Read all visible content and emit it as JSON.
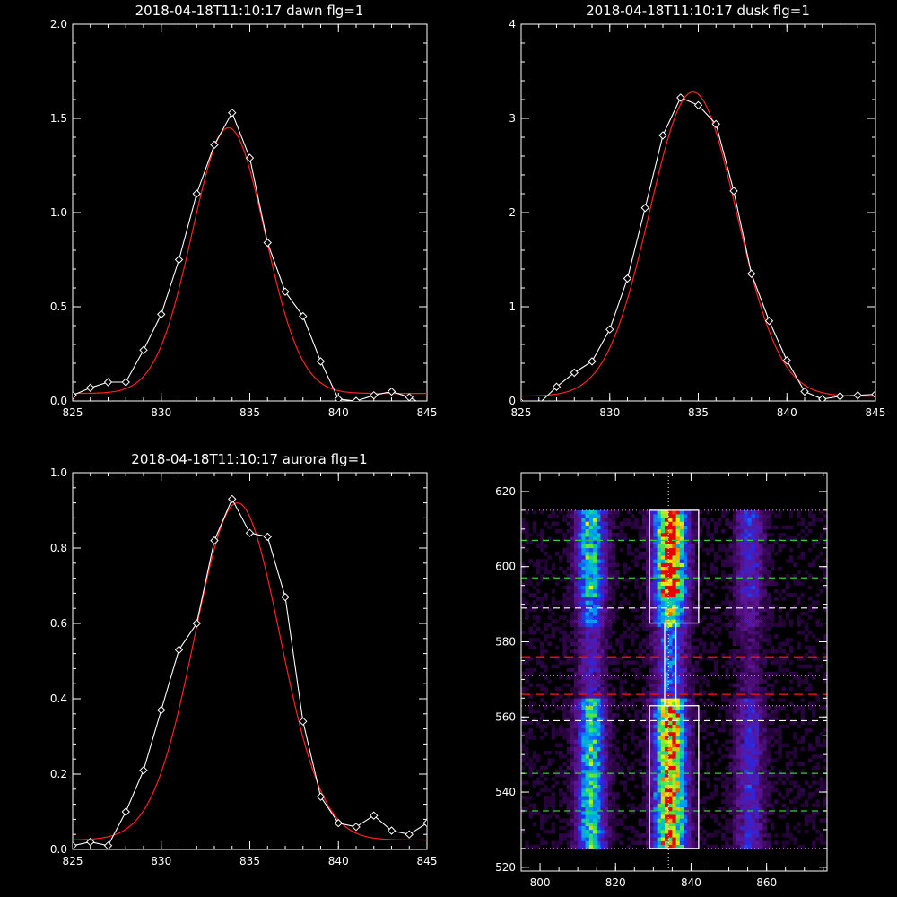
{
  "colors": {
    "background": "#000000",
    "axes": "#ffffff",
    "data_line": "#ffffff",
    "fit_line": "#ff2020",
    "guide_green": "#33cc33",
    "guide_white": "#ffffff",
    "guide_red": "#dd1111",
    "box_dotted": "#ff99ff"
  },
  "chart_data": [
    {
      "type": "line",
      "title": "2018-04-18T11:10:17 dawn flg=1",
      "xlim": [
        825,
        845
      ],
      "ylim": [
        0,
        2.0
      ],
      "xticks": [
        "825",
        "830",
        "835",
        "840",
        "845"
      ],
      "yticks": [
        "0.0",
        "0.5",
        "1.0",
        "1.5",
        "2.0"
      ],
      "series": [
        {
          "marker": "diamond",
          "x": [
            825,
            826,
            827,
            828,
            829,
            830,
            831,
            832,
            833,
            834,
            835,
            836,
            837,
            838,
            839,
            840,
            841,
            842,
            843,
            844,
            845
          ],
          "y": [
            0.03,
            0.07,
            0.1,
            0.1,
            0.27,
            0.46,
            0.75,
            1.1,
            1.36,
            1.53,
            1.29,
            0.84,
            0.58,
            0.45,
            0.21,
            0.01,
            0.0,
            0.03,
            0.05,
            0.02,
            -0.03
          ]
        },
        {
          "marker": "none",
          "fit": {
            "amplitude": 1.41,
            "center": 833.8,
            "sigma": 2.05,
            "baseline": 0.04
          }
        }
      ]
    },
    {
      "type": "line",
      "title": "2018-04-18T11:10:17 dusk flg=1",
      "xlim": [
        825,
        845
      ],
      "ylim": [
        0,
        4
      ],
      "xticks": [
        "825",
        "830",
        "835",
        "840",
        "845"
      ],
      "yticks": [
        "0",
        "1",
        "2",
        "3",
        "4"
      ],
      "series": [
        {
          "marker": "diamond",
          "x": [
            825,
            826,
            827,
            828,
            829,
            830,
            831,
            832,
            833,
            834,
            835,
            836,
            837,
            838,
            839,
            840,
            841,
            842,
            843,
            844,
            845
          ],
          "y": [
            -0.02,
            -0.03,
            0.15,
            0.3,
            0.42,
            0.76,
            1.3,
            2.05,
            2.82,
            3.22,
            3.14,
            2.94,
            2.23,
            1.35,
            0.85,
            0.43,
            0.1,
            0.02,
            0.05,
            0.06,
            0.07
          ]
        },
        {
          "marker": "none",
          "fit": {
            "amplitude": 3.23,
            "center": 834.7,
            "sigma": 2.45,
            "baseline": 0.05
          }
        }
      ]
    },
    {
      "type": "line",
      "title": "2018-04-18T11:10:17 aurora flg=1",
      "xlim": [
        825,
        845
      ],
      "ylim": [
        0,
        1.0
      ],
      "xticks": [
        "825",
        "830",
        "835",
        "840",
        "845"
      ],
      "yticks": [
        "0.0",
        "0.2",
        "0.4",
        "0.6",
        "0.8",
        "1.0"
      ],
      "series": [
        {
          "marker": "diamond",
          "x": [
            825,
            826,
            827,
            828,
            829,
            830,
            831,
            832,
            833,
            834,
            835,
            836,
            837,
            838,
            839,
            840,
            841,
            842,
            843,
            844,
            845
          ],
          "y": [
            0.01,
            0.02,
            0.01,
            0.1,
            0.21,
            0.37,
            0.53,
            0.6,
            0.82,
            0.93,
            0.84,
            0.83,
            0.67,
            0.34,
            0.14,
            0.07,
            0.06,
            0.09,
            0.05,
            0.04,
            0.07
          ]
        },
        {
          "marker": "none",
          "fit": {
            "amplitude": 0.895,
            "center": 834.3,
            "sigma": 2.4,
            "baseline": 0.025
          }
        }
      ]
    },
    {
      "type": "heatmap",
      "title": "",
      "xlim": [
        795,
        876
      ],
      "ylim": [
        519,
        625
      ],
      "xticks": [
        "800",
        "820",
        "840",
        "860"
      ],
      "yticks": [
        "520",
        "540",
        "560",
        "580",
        "600",
        "620"
      ],
      "emission_lines_x": [
        813,
        834,
        855
      ],
      "center_line_x": 834,
      "boxes": [
        {
          "x": [
            829,
            842
          ],
          "y": [
            585,
            615
          ]
        },
        {
          "x": [
            833,
            836
          ],
          "y": [
            563,
            585
          ]
        },
        {
          "x": [
            829,
            842
          ],
          "y": [
            525,
            563
          ]
        }
      ],
      "dotted_y": [
        525,
        563,
        571,
        585,
        615
      ],
      "green_dashed_y": [
        535,
        545,
        597,
        607
      ],
      "white_dashed_y": [
        559,
        589
      ],
      "red_dashed_y": [
        566,
        576
      ]
    }
  ]
}
